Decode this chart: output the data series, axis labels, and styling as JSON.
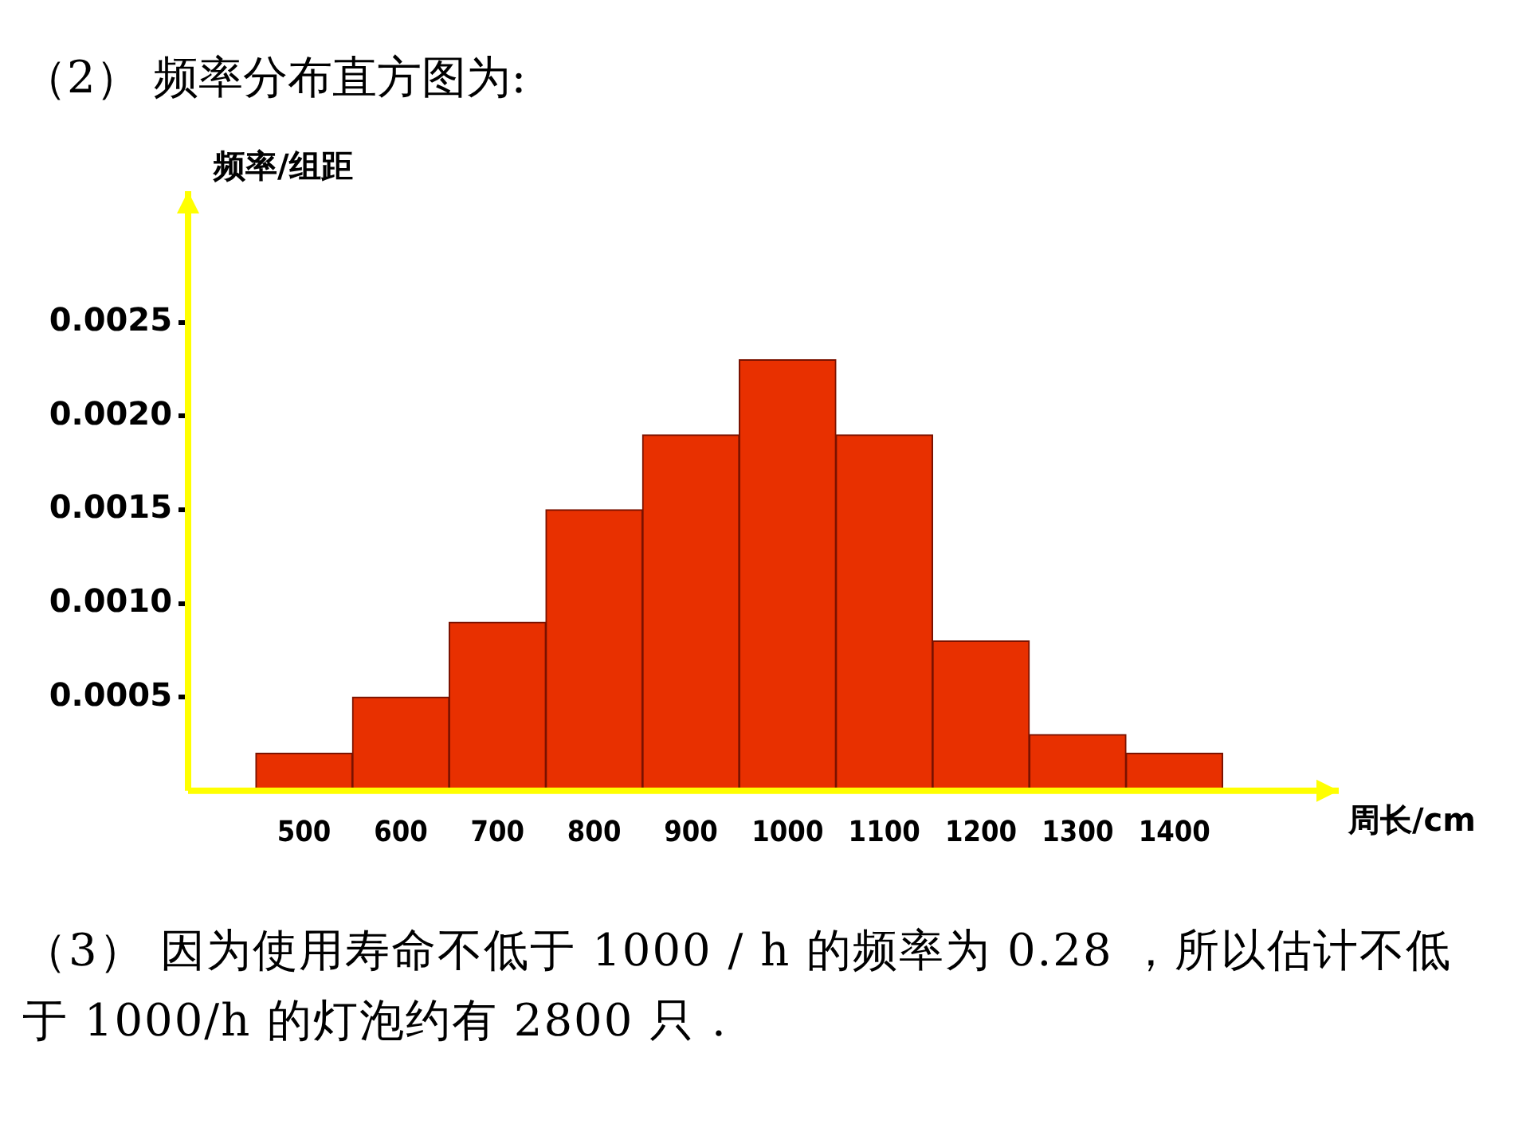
{
  "chart_data": {
    "type": "histogram",
    "title": "（2） 频率分布直方图为:",
    "xlabel": "周长/cm",
    "ylabel": "频率/组距",
    "bins": [
      450,
      550,
      650,
      750,
      850,
      950,
      1050,
      1150,
      1250,
      1350,
      1450
    ],
    "values": [
      0.0002,
      0.0005,
      0.0009,
      0.0015,
      0.0019,
      0.0023,
      0.0019,
      0.0008,
      0.0003,
      0.0002
    ],
    "color": "#e83000",
    "xlim": [
      380,
      1570
    ],
    "xticks": [
      500,
      600,
      700,
      800,
      900,
      1000,
      1100,
      1200,
      1300,
      1400
    ],
    "ylim": [
      0,
      0.0032
    ],
    "yticks": [
      {
        "value": 0.0005,
        "label": "0.0005"
      },
      {
        "value": 0.001,
        "label": "0.0010"
      },
      {
        "value": 0.0015,
        "label": "0.0015"
      },
      {
        "value": 0.002,
        "label": "0.0020"
      },
      {
        "value": 0.0025,
        "label": "0.0025"
      }
    ],
    "grid": false,
    "annotations": [
      "（3） 因为使用寿命不低于 1000 / h 的频率为 0.28 ，所以估计不低于 1000/h 的灯泡约有 2800 只 ."
    ]
  }
}
